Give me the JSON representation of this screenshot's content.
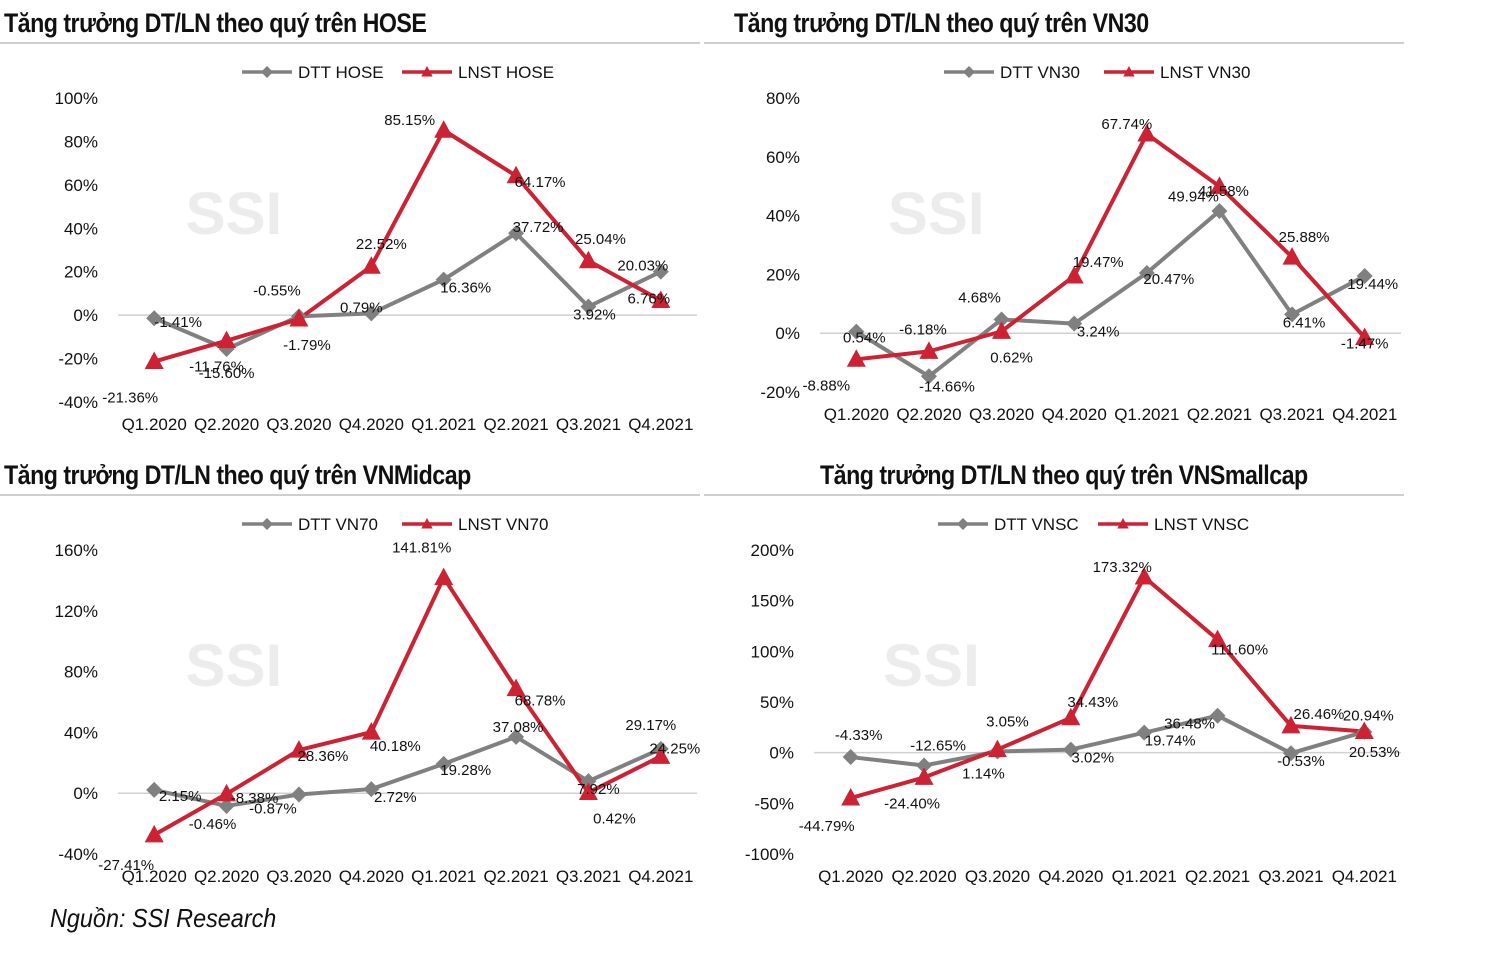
{
  "source": "Nguồn: SSI Research",
  "watermark": "SSI",
  "colors": {
    "gray": "#808080",
    "red": "#cc2233",
    "axis": "#d0d0d0",
    "watermark": "#ececec"
  },
  "chart_data": [
    {
      "type": "line",
      "title": "Tăng trưởng DT/LN theo quý trên HOSE",
      "categories": [
        "Q1.2020",
        "Q2.2020",
        "Q3.2020",
        "Q4.2020",
        "Q1.2021",
        "Q2.2021",
        "Q3.2021",
        "Q4.2021"
      ],
      "ylim": [
        -40,
        100
      ],
      "yticks": [
        -40,
        -20,
        0,
        20,
        40,
        60,
        80,
        100
      ],
      "ytick_labels": [
        "-40%",
        "-20%",
        "0%",
        "20%",
        "40%",
        "60%",
        "80%",
        "100%"
      ],
      "series": [
        {
          "name": "DTT HOSE",
          "marker": "diamond",
          "color": "#808080",
          "values": [
            -1.41,
            -15.6,
            -0.55,
            0.79,
            16.36,
            37.72,
            3.92,
            20.03
          ],
          "labels": [
            "-1.41%",
            "-15.60%",
            "-0.55%",
            "0.79%",
            "16.36%",
            "37.72%",
            "3.92%",
            "20.03%"
          ]
        },
        {
          "name": "LNST HOSE",
          "marker": "triangle",
          "color": "#cc2233",
          "values": [
            -21.36,
            -11.76,
            -1.79,
            22.52,
            85.15,
            64.17,
            25.04,
            6.76
          ],
          "labels": [
            "-21.36%",
            "-11.76%",
            "-1.79%",
            "22.52%",
            "85.15%",
            "64.17%",
            "25.04%",
            "6.76%"
          ]
        }
      ]
    },
    {
      "type": "line",
      "title": "Tăng trưởng DT/LN theo quý trên VN30",
      "categories": [
        "Q1.2020",
        "Q2.2020",
        "Q3.2020",
        "Q4.2020",
        "Q1.2021",
        "Q2.2021",
        "Q3.2021",
        "Q4.2021"
      ],
      "ylim": [
        -20,
        80
      ],
      "yticks": [
        -20,
        0,
        20,
        40,
        60,
        80
      ],
      "ytick_labels": [
        "-20%",
        "0%",
        "20%",
        "40%",
        "60%",
        "80%"
      ],
      "series": [
        {
          "name": "DTT VN30",
          "marker": "diamond",
          "color": "#808080",
          "values": [
            0.54,
            -14.66,
            4.68,
            3.24,
            20.47,
            41.58,
            6.41,
            19.44
          ],
          "labels": [
            "0.54%",
            "-14.66%",
            "4.68%",
            "3.24%",
            "20.47%",
            "41.58%",
            "6.41%",
            "19.44%"
          ]
        },
        {
          "name": "LNST VN30",
          "marker": "triangle",
          "color": "#cc2233",
          "values": [
            -8.88,
            -6.18,
            0.62,
            19.47,
            67.74,
            49.94,
            25.88,
            -1.47
          ],
          "labels": [
            "-8.88%",
            "-6.18%",
            "0.62%",
            "19.47%",
            "67.74%",
            "49.94%",
            "25.88%",
            "-1.47%"
          ]
        }
      ]
    },
    {
      "type": "line",
      "title": "Tăng trưởng DT/LN theo quý trên VNMidcap",
      "categories": [
        "Q1.2020",
        "Q2.2020",
        "Q3.2020",
        "Q4.2020",
        "Q1.2021",
        "Q2.2021",
        "Q3.2021",
        "Q4.2021"
      ],
      "ylim": [
        -40,
        160
      ],
      "yticks": [
        -40,
        0,
        40,
        80,
        120,
        160
      ],
      "ytick_labels": [
        "-40%",
        "0%",
        "40%",
        "80%",
        "120%",
        "160%"
      ],
      "series": [
        {
          "name": "DTT VN70",
          "marker": "diamond",
          "color": "#808080",
          "values": [
            2.15,
            -8.38,
            -0.87,
            2.72,
            19.28,
            37.08,
            7.92,
            29.17
          ],
          "labels": [
            "2.15%",
            "-8.38%",
            "-0.87%",
            "2.72%",
            "19.28%",
            "37.08%",
            "7.92%",
            "29.17%"
          ]
        },
        {
          "name": "LNST VN70",
          "marker": "triangle",
          "color": "#cc2233",
          "values": [
            -27.41,
            -0.46,
            28.36,
            40.18,
            141.81,
            68.78,
            0.42,
            24.25
          ],
          "labels": [
            "-27.41%",
            "-0.46%",
            "28.36%",
            "40.18%",
            "141.81%",
            "68.78%",
            "0.42%",
            "24.25%"
          ]
        }
      ]
    },
    {
      "type": "line",
      "title": "Tăng trưởng DT/LN theo quý trên VNSmallcap",
      "categories": [
        "Q1.2020",
        "Q2.2020",
        "Q3.2020",
        "Q4.2020",
        "Q1.2021",
        "Q2.2021",
        "Q3.2021",
        "Q4.2021"
      ],
      "ylim": [
        -100,
        200
      ],
      "yticks": [
        -100,
        -50,
        0,
        50,
        100,
        150,
        200
      ],
      "ytick_labels": [
        "-100%",
        "-50%",
        "0%",
        "50%",
        "100%",
        "150%",
        "200%"
      ],
      "series": [
        {
          "name": "DTT VNSC",
          "marker": "diamond",
          "color": "#808080",
          "values": [
            -4.33,
            -12.65,
            1.14,
            3.02,
            19.74,
            36.48,
            -0.53,
            20.53
          ],
          "labels": [
            "-4.33%",
            "-12.65%",
            "1.14%",
            "3.02%",
            "19.74%",
            "36.48%",
            "-0.53%",
            "20.53%"
          ]
        },
        {
          "name": "LNST VNSC",
          "marker": "triangle",
          "color": "#cc2233",
          "values": [
            -44.79,
            -24.4,
            3.05,
            34.43,
            173.32,
            111.6,
            26.46,
            20.94
          ],
          "labels": [
            "-44.79%",
            "-24.40%",
            "3.05%",
            "34.43%",
            "173.32%",
            "111.60%",
            "26.46%",
            "20.94%"
          ]
        }
      ]
    }
  ]
}
